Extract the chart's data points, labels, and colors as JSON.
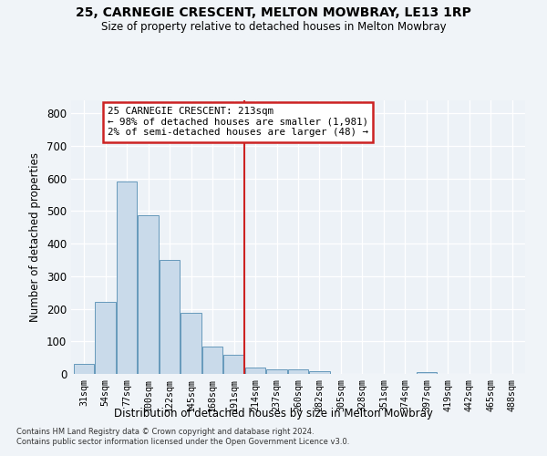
{
  "title1": "25, CARNEGIE CRESCENT, MELTON MOWBRAY, LE13 1RP",
  "title2": "Size of property relative to detached houses in Melton Mowbray",
  "xlabel": "Distribution of detached houses by size in Melton Mowbray",
  "ylabel": "Number of detached properties",
  "categories": [
    "31sqm",
    "54sqm",
    "77sqm",
    "100sqm",
    "122sqm",
    "145sqm",
    "168sqm",
    "191sqm",
    "214sqm",
    "237sqm",
    "260sqm",
    "282sqm",
    "305sqm",
    "328sqm",
    "351sqm",
    "374sqm",
    "397sqm",
    "419sqm",
    "442sqm",
    "465sqm",
    "488sqm"
  ],
  "values": [
    32,
    220,
    590,
    487,
    350,
    188,
    85,
    60,
    20,
    15,
    13,
    8,
    0,
    0,
    0,
    0,
    7,
    0,
    0,
    0,
    0
  ],
  "bar_color": "#c9daea",
  "bar_edge_color": "#6699bb",
  "vline_color": "#cc2222",
  "annotation_text": "25 CARNEGIE CRESCENT: 213sqm\n← 98% of detached houses are smaller (1,981)\n2% of semi-detached houses are larger (48) →",
  "annotation_box_color": "#cc2222",
  "background_color": "#edf2f7",
  "grid_color": "#ffffff",
  "ylim": [
    0,
    840
  ],
  "yticks": [
    0,
    100,
    200,
    300,
    400,
    500,
    600,
    700,
    800
  ],
  "footer1": "Contains HM Land Registry data © Crown copyright and database right 2024.",
  "footer2": "Contains public sector information licensed under the Open Government Licence v3.0."
}
